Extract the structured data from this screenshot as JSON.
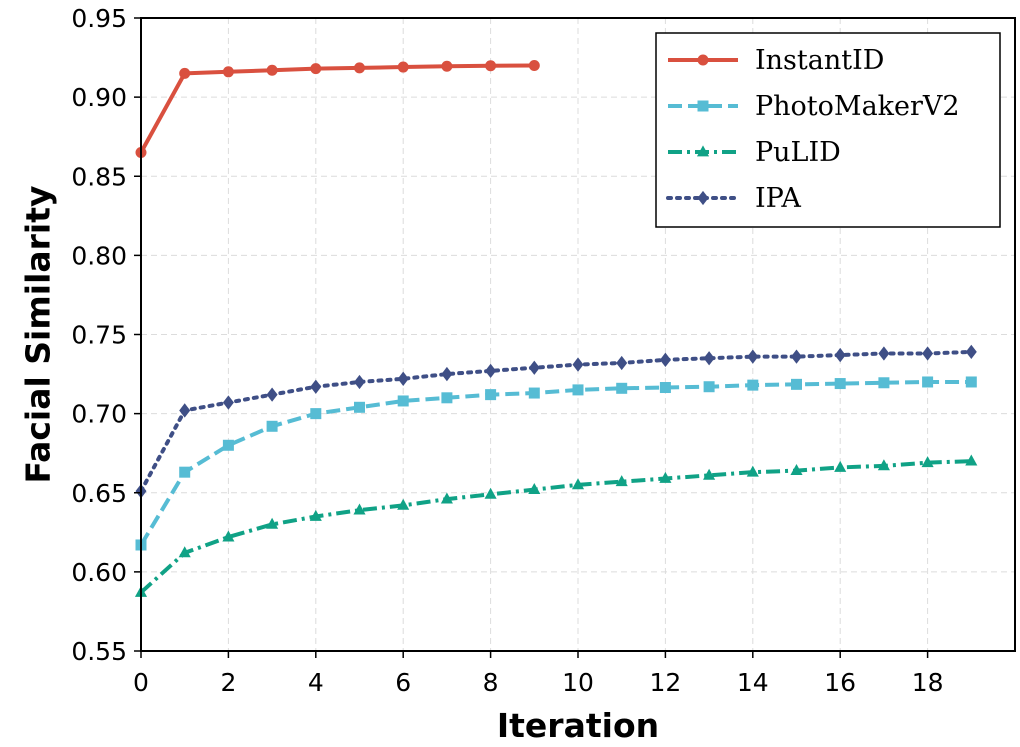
{
  "chart_data": {
    "type": "line",
    "title": "",
    "xlabel": "Iteration",
    "ylabel": "Facial Similarity",
    "xlim": [
      0,
      20
    ],
    "ylim": [
      0.55,
      0.95
    ],
    "xticks": [
      0,
      2,
      4,
      6,
      8,
      10,
      12,
      14,
      16,
      18
    ],
    "xtick_labels": [
      "0",
      "2",
      "4",
      "6",
      "8",
      "10",
      "12",
      "14",
      "16",
      "18"
    ],
    "yticks": [
      0.55,
      0.6,
      0.65,
      0.7,
      0.75,
      0.8,
      0.85,
      0.9,
      0.95
    ],
    "ytick_labels": [
      "0.55",
      "0.60",
      "0.65",
      "0.70",
      "0.75",
      "0.80",
      "0.85",
      "0.90",
      "0.95"
    ],
    "grid": true,
    "legend_position": "top-right",
    "series": [
      {
        "name": "InstantID",
        "color": "#d9503f",
        "line_style": "solid",
        "marker": "circle",
        "x": [
          0,
          1,
          2,
          3,
          4,
          5,
          6,
          7,
          8,
          9
        ],
        "values": [
          0.865,
          0.915,
          0.916,
          0.917,
          0.918,
          0.9185,
          0.919,
          0.9195,
          0.9198,
          0.92
        ]
      },
      {
        "name": "PhotoMakerV2",
        "color": "#56bcd4",
        "line_style": "dashed",
        "marker": "square",
        "x": [
          0,
          1,
          2,
          3,
          4,
          5,
          6,
          7,
          8,
          9,
          10,
          11,
          12,
          13,
          14,
          15,
          16,
          17,
          18,
          19
        ],
        "values": [
          0.617,
          0.663,
          0.68,
          0.692,
          0.7,
          0.704,
          0.708,
          0.71,
          0.712,
          0.713,
          0.715,
          0.716,
          0.7165,
          0.717,
          0.718,
          0.7185,
          0.719,
          0.7195,
          0.72,
          0.72
        ]
      },
      {
        "name": "PuLID",
        "color": "#10a286",
        "line_style": "dashdot",
        "marker": "triangle",
        "x": [
          0,
          1,
          2,
          3,
          4,
          5,
          6,
          7,
          8,
          9,
          10,
          11,
          12,
          13,
          14,
          15,
          16,
          17,
          18,
          19
        ],
        "values": [
          0.587,
          0.612,
          0.622,
          0.63,
          0.635,
          0.639,
          0.642,
          0.646,
          0.649,
          0.652,
          0.655,
          0.657,
          0.659,
          0.661,
          0.663,
          0.664,
          0.666,
          0.667,
          0.669,
          0.67
        ]
      },
      {
        "name": "IPA",
        "color": "#3f4f86",
        "line_style": "dotted",
        "marker": "diamond",
        "x": [
          0,
          1,
          2,
          3,
          4,
          5,
          6,
          7,
          8,
          9,
          10,
          11,
          12,
          13,
          14,
          15,
          16,
          17,
          18,
          19
        ],
        "values": [
          0.651,
          0.702,
          0.707,
          0.712,
          0.717,
          0.72,
          0.722,
          0.725,
          0.727,
          0.729,
          0.731,
          0.732,
          0.734,
          0.735,
          0.736,
          0.736,
          0.737,
          0.738,
          0.738,
          0.739
        ]
      }
    ]
  }
}
